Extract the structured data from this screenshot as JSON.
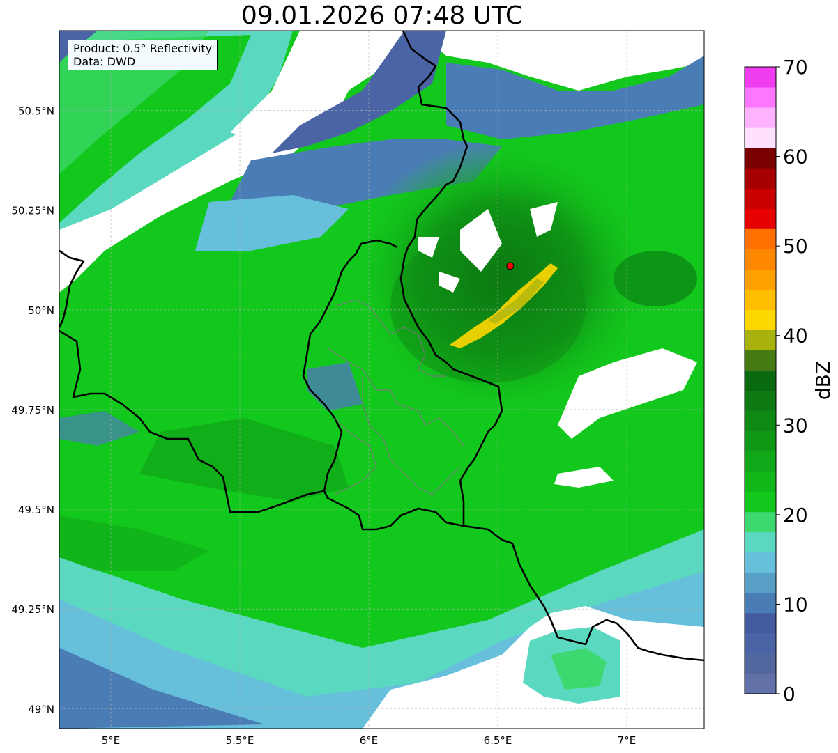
{
  "title": "09.01.2026 07:48 UTC",
  "product_box": {
    "product": "Product: 0.5° Reflectivity",
    "data_source": "Data: DWD"
  },
  "map": {
    "lon_range": [
      4.8,
      7.3
    ],
    "lat_range": [
      48.95,
      50.7
    ],
    "lat_ticks": [
      {
        "value": 50.5,
        "label": "50.5°N"
      },
      {
        "value": 50.25,
        "label": "50.25°N"
      },
      {
        "value": 50.0,
        "label": "50°N"
      },
      {
        "value": 49.75,
        "label": "49.75°N"
      },
      {
        "value": 49.5,
        "label": "49.5°N"
      },
      {
        "value": 49.25,
        "label": "49.25°N"
      },
      {
        "value": 49.0,
        "label": "49°N"
      }
    ],
    "lon_ticks": [
      {
        "value": 5.0,
        "label": "5°E"
      },
      {
        "value": 5.5,
        "label": "5.5°E"
      },
      {
        "value": 6.0,
        "label": "6°E"
      },
      {
        "value": 6.5,
        "label": "6.5°E"
      },
      {
        "value": 7.0,
        "label": "7°E"
      }
    ],
    "grid": true,
    "radar_site": {
      "lon": 6.548,
      "lat": 50.11,
      "marker_color": "#ff0000"
    }
  },
  "colorbar": {
    "label": "dBZ",
    "min": 0,
    "max": 70,
    "ticks": [
      {
        "value": 0,
        "label": "0"
      },
      {
        "value": 10,
        "label": "10"
      },
      {
        "value": 20,
        "label": "20"
      },
      {
        "value": 30,
        "label": "30"
      },
      {
        "value": 40,
        "label": "40"
      },
      {
        "value": 50,
        "label": "50"
      },
      {
        "value": 60,
        "label": "60"
      },
      {
        "value": 70,
        "label": "70"
      }
    ],
    "colors": [
      "#6272a8",
      "#53679f",
      "#4a64a5",
      "#435aa0",
      "#4a7cb6",
      "#589fc8",
      "#66c0dc",
      "#5bd8c0",
      "#3ed870",
      "#13c81c",
      "#12b81a",
      "#10a818",
      "#0f9816",
      "#0d8914",
      "#0e7a12",
      "#0a6a0f",
      "#467a12",
      "#a8b20f",
      "#ffd700",
      "#ffbf00",
      "#ffa000",
      "#ff8800",
      "#ff7000",
      "#e60000",
      "#c80000",
      "#a60000",
      "#7a0000",
      "#ffe0ff",
      "#ffb2ff",
      "#ff77ff",
      "#f03df0"
    ]
  }
}
